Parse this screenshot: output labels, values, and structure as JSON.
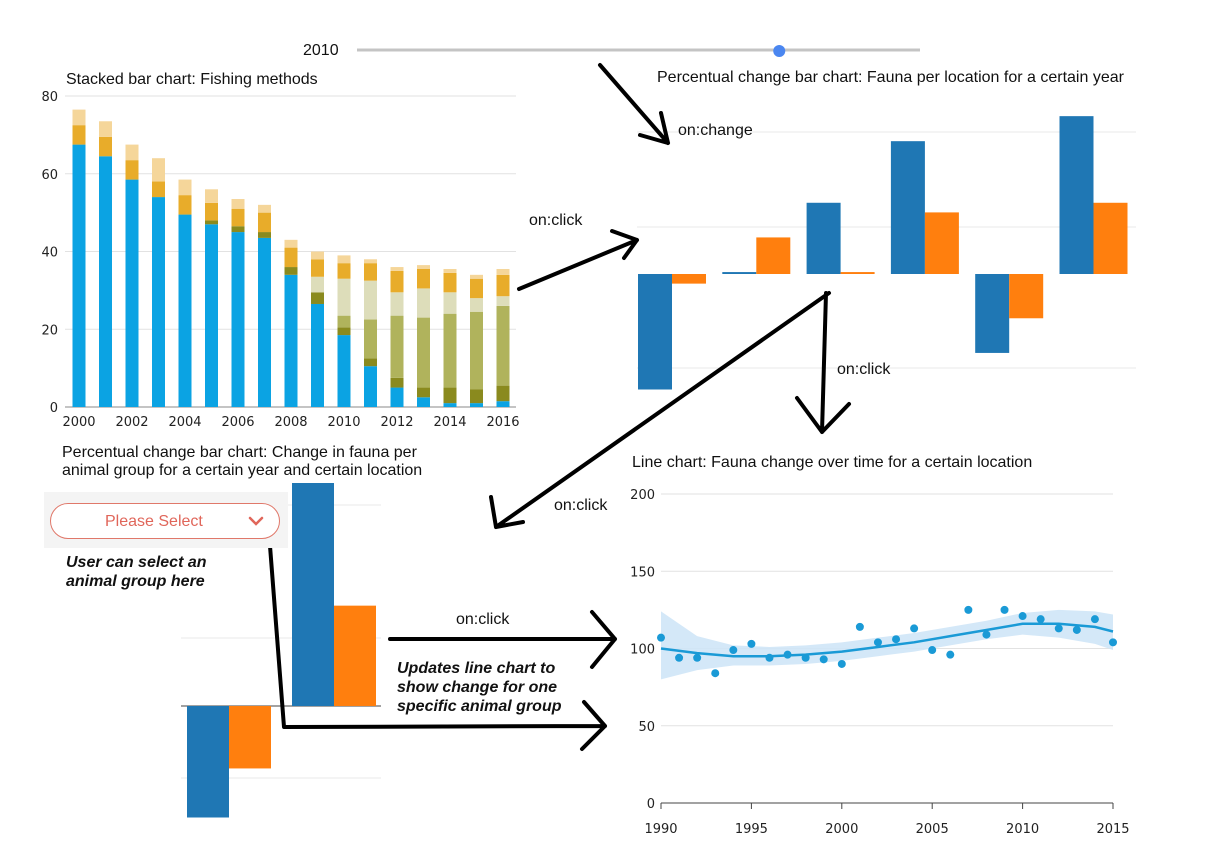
{
  "slider": {
    "year_label": "2010",
    "value": 0.75
  },
  "titles": {
    "stacked": "Stacked bar chart: Fishing methods",
    "location": "Percentual change bar chart: Fauna per location for a certain year",
    "animal_line1": "Percentual change bar chart: Change in fauna per",
    "animal_line2": "animal group for a certain year and certain location",
    "line": "Line chart: Fauna change over time for a certain location"
  },
  "select": {
    "placeholder": "Please Select",
    "help_line1": "User can select an",
    "help_line2": "animal group here"
  },
  "events": {
    "on_change": "on:change",
    "on_click_1": "on:click",
    "on_click_2": "on:click",
    "on_click_3": "on:click",
    "on_click_4": "on:click"
  },
  "update_note": {
    "line1": "Updates line chart to",
    "line2": "show change for one",
    "line3": "specific animal group"
  },
  "colors": {
    "blue_bar": "#1f77b4",
    "orange_bar": "#ff7f0e",
    "stack_blue": "#0ba3e3",
    "line_blue": "#1a9ad6",
    "band": "#cfe6f7",
    "arrow": "#000000"
  },
  "chart_data": [
    {
      "type": "bar",
      "stacked": true,
      "title": "Stacked bar chart: Fishing methods",
      "categories": [
        "2000",
        "2001",
        "2002",
        "2003",
        "2004",
        "2005",
        "2006",
        "2007",
        "2008",
        "2009",
        "2010",
        "2011",
        "2012",
        "2013",
        "2014",
        "2015",
        "2016"
      ],
      "x_tick_labels": [
        "2000",
        "2002",
        "2004",
        "2006",
        "2008",
        "2010",
        "2012",
        "2014",
        "2016"
      ],
      "y_ticks": [
        "0",
        "20",
        "40",
        "60",
        "80"
      ],
      "ylim": [
        0,
        80
      ],
      "grid": true,
      "series": [
        {
          "color": "#0ba3e3",
          "values": [
            67.5,
            64.5,
            58.5,
            54,
            49.5,
            47,
            45,
            43.5,
            34,
            26.5,
            18.5,
            10.5,
            5,
            2.5,
            1,
            1,
            1.5
          ]
        },
        {
          "color": "#8a8a1e",
          "values": [
            0,
            0,
            0,
            0,
            0,
            1,
            1.5,
            1.5,
            2,
            3,
            2,
            2,
            2.5,
            2.5,
            4,
            3.5,
            4
          ]
        },
        {
          "color": "#b0b35c",
          "values": [
            0,
            0,
            0,
            0,
            0,
            0,
            0,
            0,
            0,
            0,
            3,
            10,
            16,
            18,
            19,
            20,
            20.5
          ]
        },
        {
          "color": "#ddddba",
          "values": [
            0,
            0,
            0,
            0,
            0,
            0,
            0,
            0,
            0,
            4,
            9.5,
            10,
            6,
            7.5,
            5.5,
            3.5,
            2.5
          ]
        },
        {
          "color": "#e8ac2a",
          "values": [
            5,
            5,
            5,
            4,
            5,
            4.5,
            4.5,
            5,
            5,
            4.5,
            4,
            4.5,
            5.5,
            5,
            5,
            5,
            5.5
          ]
        },
        {
          "color": "#f5d69a",
          "values": [
            4,
            4,
            4,
            6,
            4,
            3.5,
            2.5,
            2,
            2,
            2,
            2,
            1,
            1,
            1,
            1,
            1,
            1.5
          ]
        }
      ]
    },
    {
      "type": "bar",
      "title": "Percentual change bar chart: Fauna per location for a certain year",
      "categories": [
        "1",
        "2",
        "3",
        "4",
        "5",
        "6"
      ],
      "series": [
        {
          "color": "#1f77b4",
          "values": [
            -60,
            1,
            37,
            69,
            -41,
            82
          ]
        },
        {
          "color": "#ff7f0e",
          "values": [
            -5,
            19,
            1,
            32,
            -23,
            37
          ]
        }
      ],
      "grid": true
    },
    {
      "type": "bar",
      "title": "Percentual change bar chart: Change in fauna per animal group for a certain year and certain location",
      "categories": [
        "1",
        "2"
      ],
      "series": [
        {
          "color": "#1f77b4",
          "values": [
            -50,
            100
          ]
        },
        {
          "color": "#ff7f0e",
          "values": [
            -28,
            45
          ]
        }
      ],
      "grid": true
    },
    {
      "type": "scatter",
      "title": "Line chart: Fauna change over time for a certain location",
      "x": [
        1990,
        1991,
        1992,
        1993,
        1994,
        1995,
        1996,
        1997,
        1998,
        1999,
        2000,
        2001,
        2002,
        2003,
        2004,
        2005,
        2006,
        2007,
        2008,
        2009,
        2010,
        2011,
        2012,
        2013,
        2014,
        2015
      ],
      "y": [
        107,
        94,
        94,
        84,
        99,
        103,
        94,
        96,
        94,
        93,
        90,
        114,
        104,
        106,
        113,
        99,
        96,
        125,
        109,
        125,
        121,
        119,
        113,
        112,
        119,
        104
      ],
      "trend": [
        {
          "x": 1990,
          "y": 100
        },
        {
          "x": 1992,
          "y": 97
        },
        {
          "x": 1994,
          "y": 95
        },
        {
          "x": 1996,
          "y": 95
        },
        {
          "x": 1998,
          "y": 96
        },
        {
          "x": 2000,
          "y": 98
        },
        {
          "x": 2002,
          "y": 101
        },
        {
          "x": 2004,
          "y": 104
        },
        {
          "x": 2006,
          "y": 108
        },
        {
          "x": 2008,
          "y": 112
        },
        {
          "x": 2010,
          "y": 116
        },
        {
          "x": 2012,
          "y": 116
        },
        {
          "x": 2014,
          "y": 114
        },
        {
          "x": 2015,
          "y": 111
        }
      ],
      "band": [
        {
          "x": 1990,
          "lo": 80,
          "hi": 124
        },
        {
          "x": 1992,
          "lo": 86,
          "hi": 108
        },
        {
          "x": 1994,
          "lo": 89,
          "hi": 102
        },
        {
          "x": 1996,
          "lo": 89,
          "hi": 101
        },
        {
          "x": 1998,
          "lo": 90,
          "hi": 102
        },
        {
          "x": 2000,
          "lo": 92,
          "hi": 104
        },
        {
          "x": 2002,
          "lo": 95,
          "hi": 107
        },
        {
          "x": 2004,
          "lo": 98,
          "hi": 110
        },
        {
          "x": 2006,
          "lo": 102,
          "hi": 114
        },
        {
          "x": 2008,
          "lo": 106,
          "hi": 118
        },
        {
          "x": 2010,
          "lo": 109,
          "hi": 123
        },
        {
          "x": 2012,
          "lo": 107,
          "hi": 125
        },
        {
          "x": 2014,
          "lo": 103,
          "hi": 124
        },
        {
          "x": 2015,
          "lo": 99,
          "hi": 122
        }
      ],
      "x_ticks": [
        1990,
        1995,
        2000,
        2005,
        2010,
        2015
      ],
      "y_ticks": [
        0,
        50,
        100,
        150,
        200
      ],
      "xlim": [
        1990,
        2015
      ],
      "ylim": [
        0,
        200
      ],
      "grid": true
    }
  ]
}
